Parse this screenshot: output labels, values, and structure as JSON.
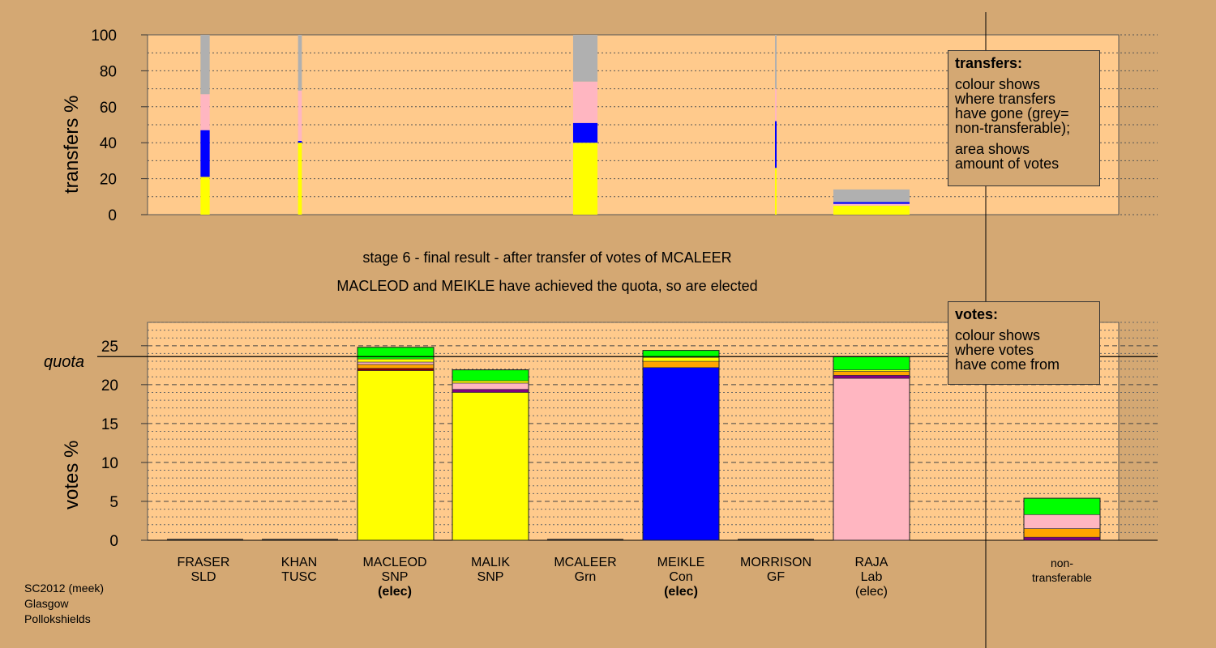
{
  "colors": {
    "background": "#d4a873",
    "plot_bg": "#ffca8c",
    "SLD": "#ffa500",
    "TUSC": "#8b0000",
    "SNP": "#ffff00",
    "Grn": "#00ff00",
    "Con": "#0000ff",
    "GF": "#800080",
    "Lab": "#ffb6c1",
    "nontransferable": "#b0b0b0"
  },
  "caption": {
    "line1": "stage 6 - final result - after transfer of votes of MCALEER",
    "line2": "MACLEOD and MEIKLE have achieved the quota, so are elected"
  },
  "legend_transfers": {
    "title": "transfers:",
    "lines1": [
      "colour shows",
      "where transfers",
      "have gone (grey=",
      "non-transferable);"
    ],
    "lines2": [
      "area shows",
      "amount of votes"
    ]
  },
  "legend_votes": {
    "title": "votes:",
    "lines": [
      "colour shows",
      "where votes",
      "have come from"
    ]
  },
  "footer": [
    "SC2012 (meek)",
    "Glasgow",
    "Pollokshields"
  ],
  "candidates": [
    {
      "name": "FRASER",
      "party": "SLD",
      "status": ""
    },
    {
      "name": "KHAN",
      "party": "TUSC",
      "status": ""
    },
    {
      "name": "MACLEOD",
      "party": "SNP",
      "status": "(elec)",
      "status_bold": true
    },
    {
      "name": "MALIK",
      "party": "SNP",
      "status": ""
    },
    {
      "name": "MCALEER",
      "party": "Grn",
      "status": ""
    },
    {
      "name": "MEIKLE",
      "party": "Con",
      "status": "(elec)",
      "status_bold": true
    },
    {
      "name": "MORRISON",
      "party": "GF",
      "status": ""
    },
    {
      "name": "RAJA",
      "party": "Lab",
      "status": "(elec)",
      "status_bold": false
    }
  ],
  "nontransferable_label": [
    "non-",
    "transferable"
  ],
  "chart_data": [
    {
      "type": "bar",
      "ylabel": "transfers %",
      "ylim": [
        0,
        100
      ],
      "yticks": [
        0,
        20,
        40,
        60,
        80,
        100
      ],
      "grid": "dotted horizontal every 10",
      "columns": [
        {
          "candidate": "FRASER",
          "width_share": 0.12,
          "segments": [
            {
              "party": "SNP",
              "from": 0,
              "to": 21
            },
            {
              "party": "Con",
              "from": 21,
              "to": 47
            },
            {
              "party": "Lab",
              "from": 47,
              "to": 67
            },
            {
              "party": "nontransferable",
              "from": 67,
              "to": 100
            }
          ]
        },
        {
          "candidate": "KHAN",
          "width_share": 0.05,
          "segments": [
            {
              "party": "SNP",
              "from": 0,
              "to": 40
            },
            {
              "party": "Con",
              "from": 40,
              "to": 41
            },
            {
              "party": "Lab",
              "from": 41,
              "to": 69
            },
            {
              "party": "nontransferable",
              "from": 69,
              "to": 100
            }
          ]
        },
        {
          "candidate": "MCALEER",
          "width_share": 0.32,
          "segments": [
            {
              "party": "SNP",
              "from": 0,
              "to": 40
            },
            {
              "party": "Con",
              "from": 40,
              "to": 51
            },
            {
              "party": "Lab",
              "from": 51,
              "to": 74
            },
            {
              "party": "nontransferable",
              "from": 74,
              "to": 100
            }
          ]
        },
        {
          "candidate": "MORRISON",
          "width_share": 0.02,
          "segments": [
            {
              "party": "SNP",
              "from": 0,
              "to": 26
            },
            {
              "party": "Con",
              "from": 26,
              "to": 52
            },
            {
              "party": "Lab",
              "from": 52,
              "to": 70
            },
            {
              "party": "nontransferable",
              "from": 70,
              "to": 100
            }
          ]
        },
        {
          "candidate": "RAJA",
          "width_share": 1.0,
          "segments": [
            {
              "party": "SNP",
              "from": 0,
              "to": 5
            },
            {
              "party": "Lab",
              "from": 5,
              "to": 6
            },
            {
              "party": "Con",
              "from": 6,
              "to": 7
            },
            {
              "party": "nontransferable",
              "from": 7,
              "to": 14
            }
          ]
        }
      ]
    },
    {
      "type": "bar",
      "ylabel": "votes %",
      "ylim": [
        0,
        28
      ],
      "yticks": [
        0,
        5,
        10,
        15,
        20,
        25
      ],
      "quota": 23.6,
      "quota_label": "quota",
      "grid": "dashed every 5, dotted every 1",
      "bars": [
        {
          "candidate": "FRASER",
          "segments": []
        },
        {
          "candidate": "KHAN",
          "segments": []
        },
        {
          "candidate": "MACLEOD",
          "segments": [
            {
              "party": "SNP",
              "value": 21.8
            },
            {
              "party": "TUSC",
              "value": 0.3
            },
            {
              "party": "SLD",
              "value": 0.5
            },
            {
              "party": "Lab",
              "value": 0.3
            },
            {
              "party": "SNP",
              "value": 0.4
            },
            {
              "party": "Grn",
              "value": 1.5
            }
          ]
        },
        {
          "candidate": "MALIK",
          "segments": [
            {
              "party": "SNP",
              "value": 19.0
            },
            {
              "party": "GF",
              "value": 0.4
            },
            {
              "party": "Lab",
              "value": 0.8
            },
            {
              "party": "SNP",
              "value": 0.3
            },
            {
              "party": "Grn",
              "value": 1.4
            }
          ]
        },
        {
          "candidate": "MCALEER",
          "segments": []
        },
        {
          "candidate": "MEIKLE",
          "segments": [
            {
              "party": "Con",
              "value": 22.2
            },
            {
              "party": "SLD",
              "value": 0.8
            },
            {
              "party": "SNP",
              "value": 0.5
            },
            {
              "party": "Grn",
              "value": 0.9
            }
          ]
        },
        {
          "candidate": "MORRISON",
          "segments": []
        },
        {
          "candidate": "RAJA",
          "segments": [
            {
              "party": "Lab",
              "value": 20.8
            },
            {
              "party": "GF",
              "value": 0.4
            },
            {
              "party": "SLD",
              "value": 0.5
            },
            {
              "party": "SNP",
              "value": 0.2
            },
            {
              "party": "Grn",
              "value": 1.7
            }
          ]
        },
        {
          "candidate": "non-transferable",
          "segments": [
            {
              "party": "GF",
              "value": 0.4
            },
            {
              "party": "SLD",
              "value": 1.1
            },
            {
              "party": "Lab",
              "value": 1.8
            },
            {
              "party": "Grn",
              "value": 2.1
            }
          ]
        }
      ]
    }
  ]
}
